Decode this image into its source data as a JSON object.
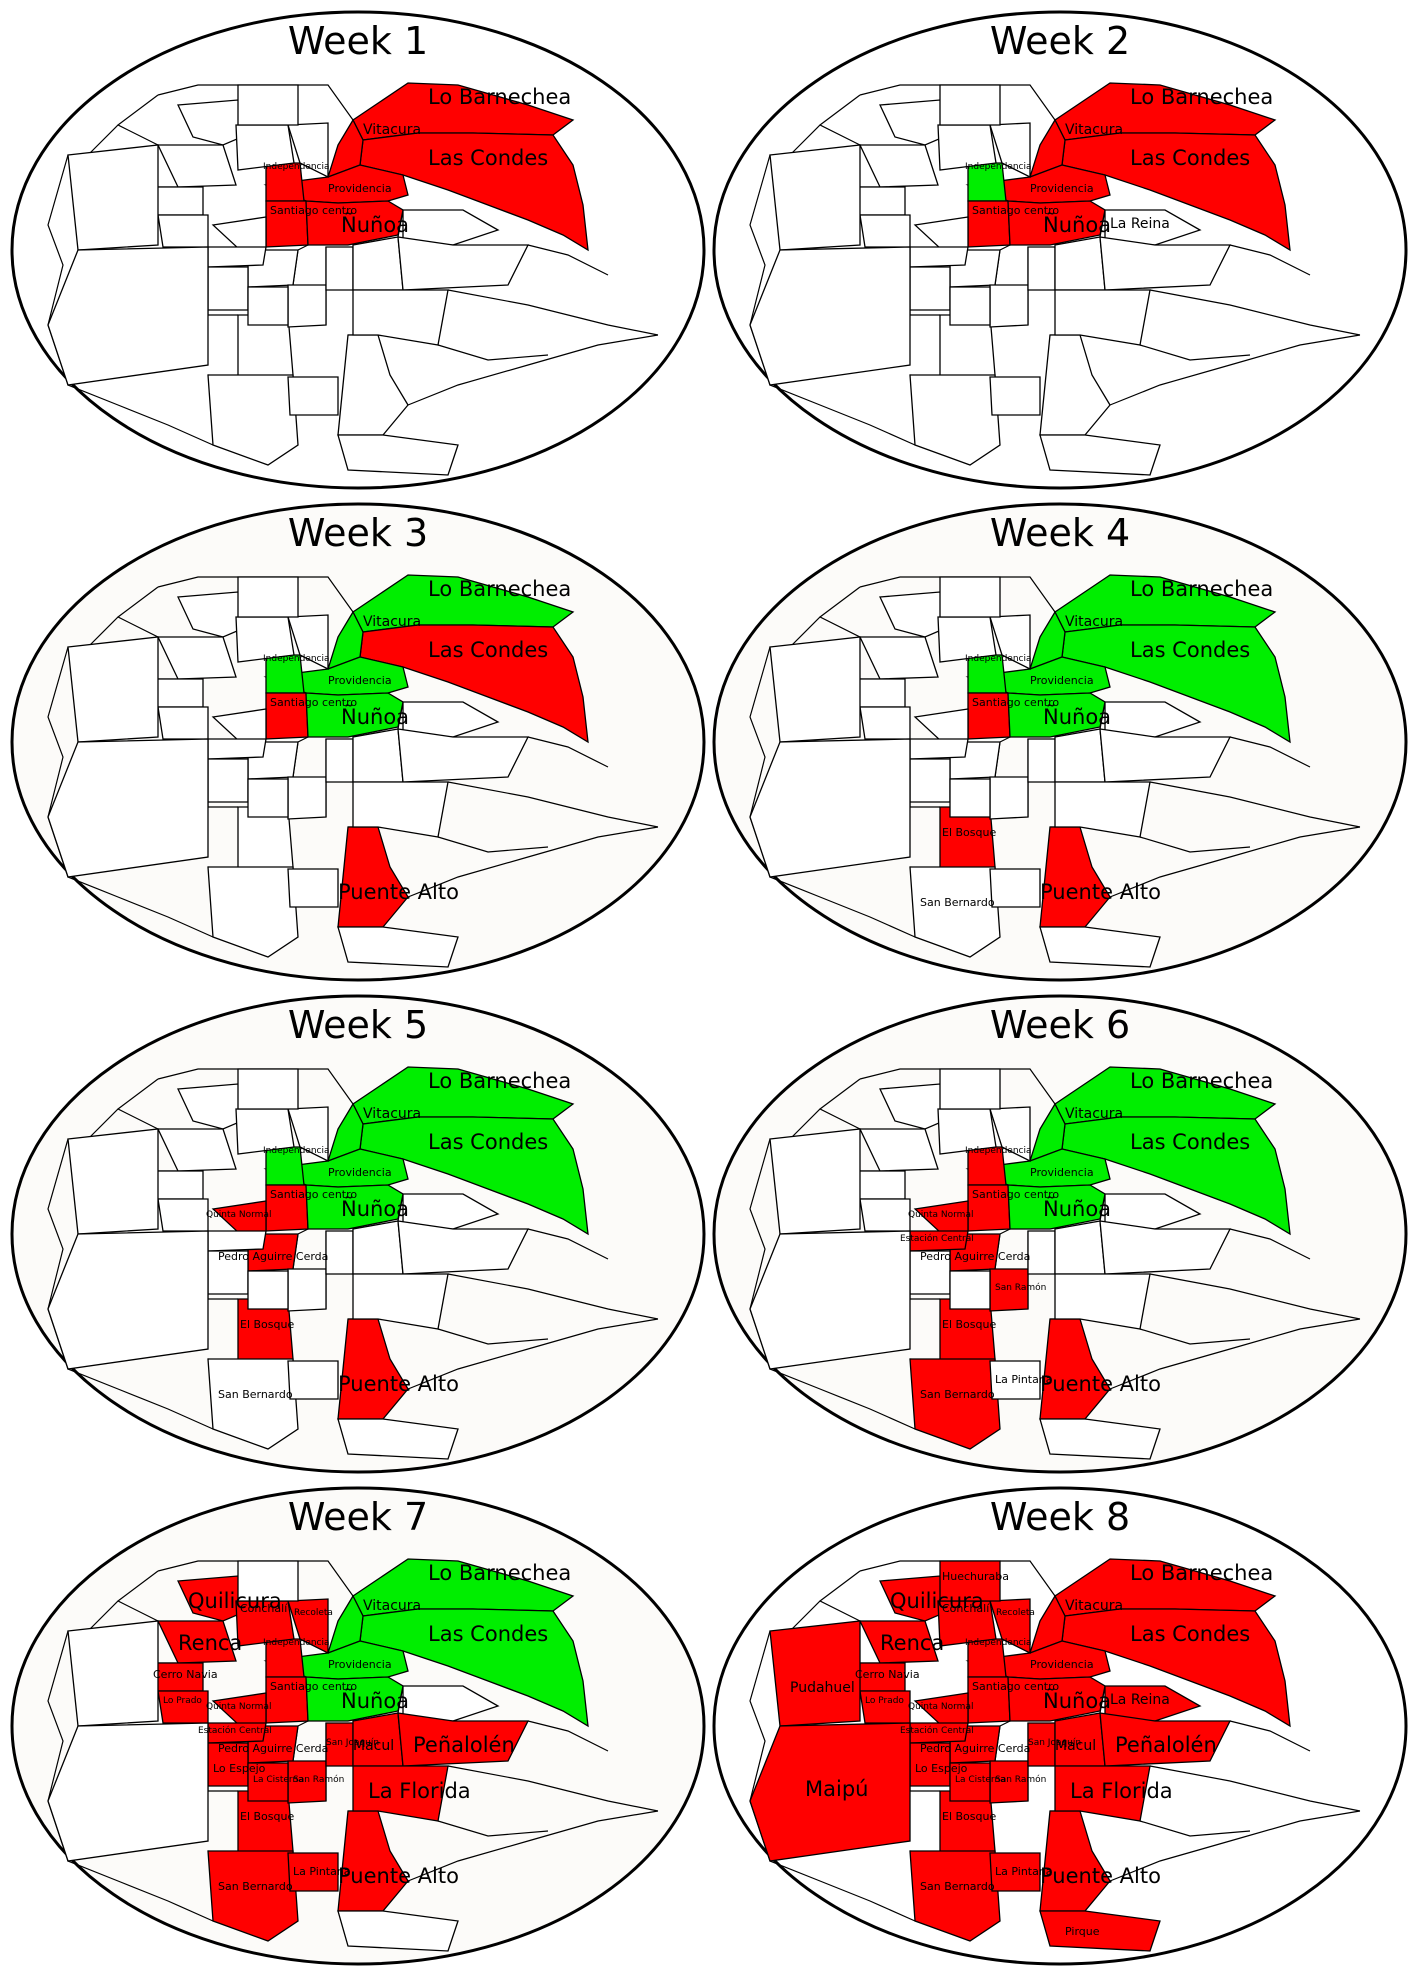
{
  "colors": {
    "lockdown": "#ff0000",
    "lifted": "#00ee00",
    "none": "#ffffff",
    "outline": "#000000"
  },
  "labels": {
    "lo_barnechea": "Lo Barnechea",
    "vitacura": "Vitacura",
    "las_condes": "Las Condes",
    "providencia": "Providencia",
    "independencia": "Independencia",
    "santiago_centro": "Santiago centro",
    "nunoa": "Ñuñoa",
    "la_reina": "La Reina",
    "puente_alto": "Puente Alto",
    "el_bosque": "El Bosque",
    "san_bernardo": "San Bernardo",
    "quinta_normal": "Quinta Normal",
    "pedro_aguirre_cerda": "Pedro Aguirre Cerda",
    "estacion_central": "Estación Central",
    "san_ramon": "San Ramón",
    "la_pintana": "La Pintana",
    "quilicura": "Quilicura",
    "renca": "Renca",
    "conchali": "Conchalí",
    "recoleta": "Recoleta",
    "cerro_navia": "Cerro Navia",
    "lo_prado": "Lo Prado",
    "san_joaquin": "San Joaquín",
    "macul": "Macul",
    "penalolen": "Peñalolén",
    "lo_espejo": "Lo Espejo",
    "la_cisterna": "La Cisterna",
    "la_florida": "La Florida",
    "huechuraba": "Huechuraba",
    "pudahuel": "Pudahuel",
    "maipu": "Maipú",
    "pirque": "Pirque"
  },
  "weeks": [
    {
      "title": "Week 1",
      "status": {
        "lo_barnechea": "lockdown",
        "vitacura": "lockdown",
        "las_condes": "lockdown",
        "providencia": "lockdown",
        "independencia": "lockdown",
        "santiago_centro": "lockdown",
        "nunoa": "lockdown"
      }
    },
    {
      "title": "Week 2",
      "status": {
        "lo_barnechea": "lockdown",
        "vitacura": "lockdown",
        "las_condes": "lockdown",
        "providencia": "lockdown",
        "independencia": "lifted",
        "santiago_centro": "lockdown",
        "nunoa": "lockdown"
      }
    },
    {
      "title": "Week 3",
      "status": {
        "lo_barnechea": "lifted",
        "vitacura": "lifted",
        "las_condes": "lockdown",
        "providencia": "lifted",
        "independencia": "lifted",
        "santiago_centro": "lockdown",
        "nunoa": "lifted",
        "puente_alto": "lockdown"
      }
    },
    {
      "title": "Week 4",
      "status": {
        "lo_barnechea": "lifted",
        "vitacura": "lifted",
        "las_condes": "lifted",
        "providencia": "lifted",
        "independencia": "lifted",
        "santiago_centro": "lockdown",
        "nunoa": "lifted",
        "puente_alto": "lockdown",
        "el_bosque": "lockdown"
      }
    },
    {
      "title": "Week 5",
      "status": {
        "lo_barnechea": "lifted",
        "vitacura": "lifted",
        "las_condes": "lifted",
        "providencia": "lifted",
        "independencia": "lifted",
        "santiago_centro": "lockdown",
        "nunoa": "lifted",
        "puente_alto": "lockdown",
        "el_bosque": "lockdown",
        "quinta_normal": "lockdown",
        "pedro_aguirre_cerda": "lockdown"
      }
    },
    {
      "title": "Week 6",
      "status": {
        "lo_barnechea": "lifted",
        "vitacura": "lifted",
        "las_condes": "lifted",
        "providencia": "lifted",
        "independencia": "lockdown",
        "santiago_centro": "lockdown",
        "nunoa": "lifted",
        "puente_alto": "lockdown",
        "el_bosque": "lockdown",
        "quinta_normal": "lockdown",
        "pedro_aguirre_cerda": "lockdown",
        "estacion_central": "lockdown",
        "san_bernardo": "lockdown",
        "san_ramon": "lockdown"
      }
    },
    {
      "title": "Week 7",
      "status": {
        "lo_barnechea": "lifted",
        "vitacura": "lifted",
        "las_condes": "lifted",
        "providencia": "lifted",
        "independencia": "lockdown",
        "santiago_centro": "lockdown",
        "nunoa": "lifted",
        "puente_alto": "lockdown",
        "el_bosque": "lockdown",
        "quinta_normal": "lockdown",
        "pedro_aguirre_cerda": "lockdown",
        "estacion_central": "lockdown",
        "san_bernardo": "lockdown",
        "san_ramon": "lockdown",
        "quilicura": "lockdown",
        "renca": "lockdown",
        "conchali": "lockdown",
        "recoleta": "lockdown",
        "cerro_navia": "lockdown",
        "lo_prado": "lockdown",
        "san_joaquin": "lockdown",
        "macul": "lockdown",
        "penalolen": "lockdown",
        "lo_espejo": "lockdown",
        "la_cisterna": "lockdown",
        "la_florida": "lockdown",
        "la_pintana": "lockdown"
      }
    },
    {
      "title": "Week 8",
      "status": {
        "lo_barnechea": "lockdown",
        "vitacura": "lockdown",
        "las_condes": "lockdown",
        "providencia": "lockdown",
        "independencia": "lockdown",
        "santiago_centro": "lockdown",
        "nunoa": "lockdown",
        "la_reina": "lockdown",
        "puente_alto": "lockdown",
        "el_bosque": "lockdown",
        "quinta_normal": "lockdown",
        "pedro_aguirre_cerda": "lockdown",
        "estacion_central": "lockdown",
        "san_bernardo": "lockdown",
        "san_ramon": "lockdown",
        "la_pintana": "lockdown",
        "quilicura": "lockdown",
        "renca": "lockdown",
        "conchali": "lockdown",
        "recoleta": "lockdown",
        "cerro_navia": "lockdown",
        "lo_prado": "lockdown",
        "san_joaquin": "lockdown",
        "macul": "lockdown",
        "penalolen": "lockdown",
        "lo_espejo": "lockdown",
        "la_cisterna": "lockdown",
        "la_florida": "lockdown",
        "huechuraba": "lockdown",
        "pudahuel": "lockdown",
        "maipu": "lockdown",
        "pirque": "lockdown"
      }
    }
  ],
  "visible_labels": [
    [
      "lo_barnechea",
      "vitacura",
      "las_condes",
      "providencia",
      "independencia",
      "santiago_centro",
      "nunoa"
    ],
    [
      "lo_barnechea",
      "vitacura",
      "las_condes",
      "providencia",
      "independencia",
      "santiago_centro",
      "nunoa",
      "la_reina"
    ],
    [
      "lo_barnechea",
      "vitacura",
      "las_condes",
      "providencia",
      "independencia",
      "santiago_centro",
      "nunoa",
      "puente_alto"
    ],
    [
      "lo_barnechea",
      "vitacura",
      "las_condes",
      "providencia",
      "independencia",
      "santiago_centro",
      "nunoa",
      "puente_alto",
      "el_bosque",
      "san_bernardo"
    ],
    [
      "lo_barnechea",
      "vitacura",
      "las_condes",
      "providencia",
      "independencia",
      "santiago_centro",
      "nunoa",
      "puente_alto",
      "el_bosque",
      "san_bernardo",
      "quinta_normal",
      "pedro_aguirre_cerda"
    ],
    [
      "lo_barnechea",
      "vitacura",
      "las_condes",
      "providencia",
      "independencia",
      "santiago_centro",
      "nunoa",
      "puente_alto",
      "el_bosque",
      "san_bernardo",
      "quinta_normal",
      "pedro_aguirre_cerda",
      "estacion_central",
      "san_ramon",
      "la_pintana"
    ],
    [
      "lo_barnechea",
      "vitacura",
      "las_condes",
      "providencia",
      "independencia",
      "santiago_centro",
      "nunoa",
      "puente_alto",
      "el_bosque",
      "san_bernardo",
      "quinta_normal",
      "pedro_aguirre_cerda",
      "estacion_central",
      "san_ramon",
      "la_pintana",
      "quilicura",
      "renca",
      "conchali",
      "recoleta",
      "cerro_navia",
      "lo_prado",
      "san_joaquin",
      "macul",
      "penalolen",
      "lo_espejo",
      "la_cisterna",
      "la_florida"
    ],
    [
      "lo_barnechea",
      "vitacura",
      "las_condes",
      "providencia",
      "independencia",
      "santiago_centro",
      "nunoa",
      "la_reina",
      "puente_alto",
      "el_bosque",
      "san_bernardo",
      "quinta_normal",
      "pedro_aguirre_cerda",
      "estacion_central",
      "san_ramon",
      "la_pintana",
      "quilicura",
      "renca",
      "conchali",
      "recoleta",
      "cerro_navia",
      "lo_prado",
      "san_joaquin",
      "macul",
      "penalolen",
      "lo_espejo",
      "la_cisterna",
      "la_florida",
      "huechuraba",
      "pudahuel",
      "maipu",
      "pirque"
    ]
  ]
}
